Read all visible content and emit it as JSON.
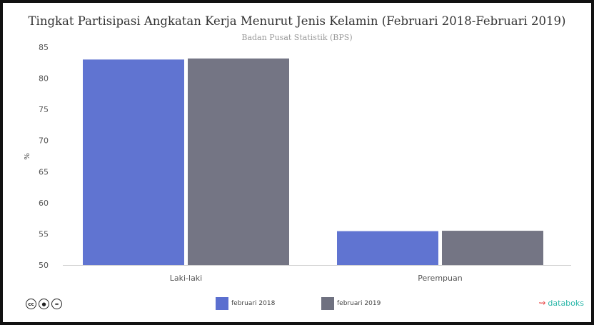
{
  "colors": {
    "series_1": "#5b6fcf",
    "series_2": "#6f7180",
    "axis_text": "#555555",
    "brand": "#2ab7a9"
  },
  "footer": {
    "license_icons": [
      "cc-icon",
      "by-icon",
      "nd-icon"
    ],
    "brand_label": "databoks"
  },
  "chart_data": {
    "type": "bar",
    "title": "Tingkat Partisipasi Angkatan Kerja Menurut Jenis Kelamin (Februari 2018-Februari 2019)",
    "subtitle": "Badan Pusat Statistik (BPS)",
    "xlabel": "",
    "ylabel": "%",
    "ylim": [
      50,
      85
    ],
    "yticks": [
      50,
      55,
      60,
      65,
      70,
      75,
      80,
      85
    ],
    "grid": false,
    "legend": "bottom",
    "categories": [
      "Laki-laki",
      "Perempuan"
    ],
    "series": [
      {
        "name": "februari 2018",
        "values": [
          83.01,
          55.44
        ]
      },
      {
        "name": "februari 2019",
        "values": [
          83.18,
          55.5
        ]
      }
    ]
  }
}
